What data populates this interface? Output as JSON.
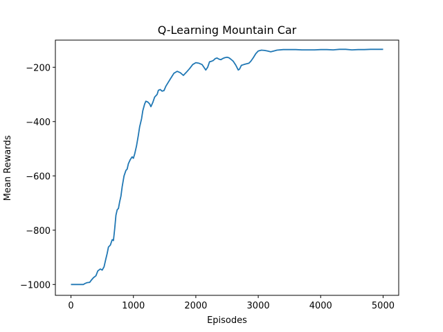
{
  "chart_data": {
    "type": "line",
    "title": "Q-Learning Mountain Car",
    "xlabel": "Episodes",
    "ylabel": "Mean Rewards",
    "xlim": [
      -250,
      5250
    ],
    "ylim": [
      -1040,
      -100
    ],
    "xticks": [
      0,
      1000,
      2000,
      3000,
      4000,
      5000
    ],
    "xtick_labels": [
      "0",
      "1000",
      "2000",
      "3000",
      "4000",
      "5000"
    ],
    "yticks": [
      -1000,
      -800,
      -600,
      -400,
      -200
    ],
    "ytick_labels": [
      "−1000",
      "−800",
      "−600",
      "−400",
      "−200"
    ],
    "grid": false,
    "line_color": "#1f77b4",
    "series": [
      {
        "values": [
          {
            "x": 0,
            "y": -1000
          },
          {
            "x": 200,
            "y": -1000
          },
          {
            "x": 220,
            "y": -997
          },
          {
            "x": 260,
            "y": -993
          },
          {
            "x": 300,
            "y": -992
          },
          {
            "x": 330,
            "y": -983
          },
          {
            "x": 360,
            "y": -975
          },
          {
            "x": 400,
            "y": -968
          },
          {
            "x": 430,
            "y": -950
          },
          {
            "x": 470,
            "y": -943
          },
          {
            "x": 500,
            "y": -947
          },
          {
            "x": 530,
            "y": -935
          },
          {
            "x": 560,
            "y": -905
          },
          {
            "x": 580,
            "y": -885
          },
          {
            "x": 600,
            "y": -862
          },
          {
            "x": 630,
            "y": -855
          },
          {
            "x": 660,
            "y": -835
          },
          {
            "x": 680,
            "y": -838
          },
          {
            "x": 700,
            "y": -795
          },
          {
            "x": 720,
            "y": -745
          },
          {
            "x": 740,
            "y": -725
          },
          {
            "x": 760,
            "y": -720
          },
          {
            "x": 780,
            "y": -695
          },
          {
            "x": 800,
            "y": -675
          },
          {
            "x": 820,
            "y": -640
          },
          {
            "x": 850,
            "y": -600
          },
          {
            "x": 880,
            "y": -580
          },
          {
            "x": 900,
            "y": -575
          },
          {
            "x": 920,
            "y": -555
          },
          {
            "x": 950,
            "y": -540
          },
          {
            "x": 980,
            "y": -530
          },
          {
            "x": 1000,
            "y": -535
          },
          {
            "x": 1020,
            "y": -520
          },
          {
            "x": 1050,
            "y": -490
          },
          {
            "x": 1080,
            "y": -450
          },
          {
            "x": 1100,
            "y": -420
          },
          {
            "x": 1130,
            "y": -390
          },
          {
            "x": 1150,
            "y": -360
          },
          {
            "x": 1180,
            "y": -335
          },
          {
            "x": 1200,
            "y": -325
          },
          {
            "x": 1230,
            "y": -328
          },
          {
            "x": 1260,
            "y": -335
          },
          {
            "x": 1280,
            "y": -345
          },
          {
            "x": 1310,
            "y": -330
          },
          {
            "x": 1340,
            "y": -310
          },
          {
            "x": 1380,
            "y": -300
          },
          {
            "x": 1400,
            "y": -285
          },
          {
            "x": 1430,
            "y": -282
          },
          {
            "x": 1460,
            "y": -288
          },
          {
            "x": 1490,
            "y": -286
          },
          {
            "x": 1520,
            "y": -270
          },
          {
            "x": 1560,
            "y": -255
          },
          {
            "x": 1600,
            "y": -240
          },
          {
            "x": 1650,
            "y": -222
          },
          {
            "x": 1700,
            "y": -215
          },
          {
            "x": 1750,
            "y": -220
          },
          {
            "x": 1800,
            "y": -230
          },
          {
            "x": 1850,
            "y": -218
          },
          {
            "x": 1900,
            "y": -205
          },
          {
            "x": 1950,
            "y": -190
          },
          {
            "x": 2000,
            "y": -183
          },
          {
            "x": 2050,
            "y": -185
          },
          {
            "x": 2100,
            "y": -190
          },
          {
            "x": 2130,
            "y": -200
          },
          {
            "x": 2160,
            "y": -210
          },
          {
            "x": 2190,
            "y": -200
          },
          {
            "x": 2220,
            "y": -180
          },
          {
            "x": 2250,
            "y": -178
          },
          {
            "x": 2280,
            "y": -175
          },
          {
            "x": 2310,
            "y": -168
          },
          {
            "x": 2340,
            "y": -166
          },
          {
            "x": 2370,
            "y": -170
          },
          {
            "x": 2400,
            "y": -172
          },
          {
            "x": 2430,
            "y": -168
          },
          {
            "x": 2460,
            "y": -165
          },
          {
            "x": 2500,
            "y": -163
          },
          {
            "x": 2530,
            "y": -165
          },
          {
            "x": 2560,
            "y": -170
          },
          {
            "x": 2600,
            "y": -178
          },
          {
            "x": 2640,
            "y": -192
          },
          {
            "x": 2680,
            "y": -210
          },
          {
            "x": 2700,
            "y": -207
          },
          {
            "x": 2730,
            "y": -193
          },
          {
            "x": 2770,
            "y": -190
          },
          {
            "x": 2800,
            "y": -188
          },
          {
            "x": 2850,
            "y": -185
          },
          {
            "x": 2880,
            "y": -178
          },
          {
            "x": 2920,
            "y": -165
          },
          {
            "x": 2960,
            "y": -150
          },
          {
            "x": 3000,
            "y": -140
          },
          {
            "x": 3050,
            "y": -137
          },
          {
            "x": 3100,
            "y": -138
          },
          {
            "x": 3150,
            "y": -140
          },
          {
            "x": 3200,
            "y": -143
          },
          {
            "x": 3250,
            "y": -140
          },
          {
            "x": 3300,
            "y": -137
          },
          {
            "x": 3400,
            "y": -135
          },
          {
            "x": 3500,
            "y": -135
          },
          {
            "x": 3600,
            "y": -135
          },
          {
            "x": 3700,
            "y": -136
          },
          {
            "x": 3800,
            "y": -136
          },
          {
            "x": 3900,
            "y": -136
          },
          {
            "x": 4000,
            "y": -135
          },
          {
            "x": 4100,
            "y": -135
          },
          {
            "x": 4200,
            "y": -136
          },
          {
            "x": 4300,
            "y": -134
          },
          {
            "x": 4400,
            "y": -134
          },
          {
            "x": 4500,
            "y": -136
          },
          {
            "x": 4600,
            "y": -135
          },
          {
            "x": 4700,
            "y": -135
          },
          {
            "x": 4800,
            "y": -134
          },
          {
            "x": 4900,
            "y": -134
          },
          {
            "x": 5000,
            "y": -134
          }
        ]
      }
    ]
  }
}
